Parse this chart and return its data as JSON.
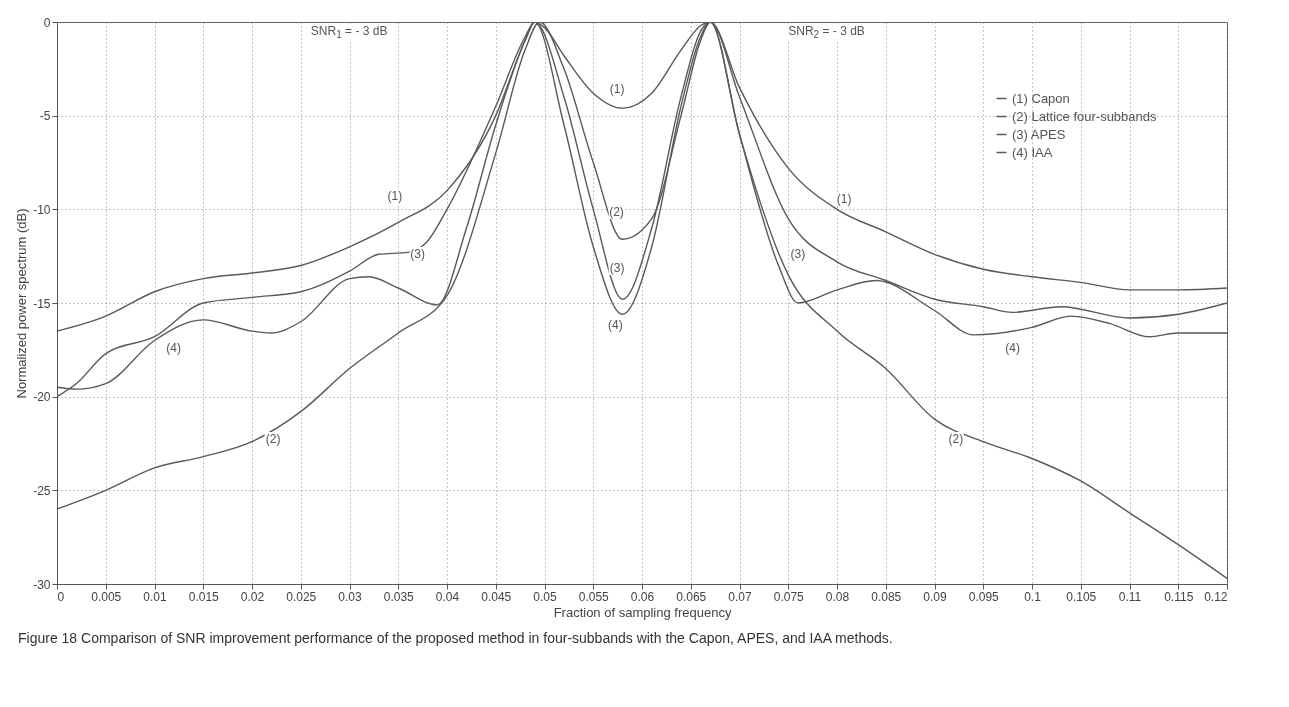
{
  "chart_data": {
    "type": "line",
    "xlabel": "Fraction of sampling frequency",
    "ylabel": "Normalized power spectrum (dB)",
    "xlim": [
      0,
      0.12
    ],
    "ylim": [
      -30,
      0
    ],
    "xticks": [
      0,
      0.005,
      0.01,
      0.015,
      0.02,
      0.025,
      0.03,
      0.035,
      0.04,
      0.045,
      0.05,
      0.055,
      0.06,
      0.065,
      0.07,
      0.075,
      0.08,
      0.085,
      0.09,
      0.095,
      0.1,
      0.105,
      0.11,
      0.115,
      0.12
    ],
    "yticks": [
      -30,
      -25,
      -20,
      -15,
      -10,
      -5,
      0
    ],
    "grid": true,
    "legend": "top right",
    "line_style": "solid",
    "series": [
      {
        "name": "(1) Capon",
        "color": "#595959",
        "x": [
          0,
          0.005,
          0.01,
          0.015,
          0.02,
          0.025,
          0.03,
          0.035,
          0.04,
          0.045,
          0.048,
          0.049,
          0.05,
          0.052,
          0.055,
          0.058,
          0.061,
          0.064,
          0.066,
          0.067,
          0.07,
          0.075,
          0.08,
          0.085,
          0.09,
          0.095,
          0.1,
          0.105,
          0.11,
          0.115,
          0.12
        ],
        "values": [
          -16.5,
          -15.7,
          -14.4,
          -13.7,
          -13.4,
          -13.0,
          -12.0,
          -10.7,
          -9.0,
          -5.0,
          -1.0,
          0,
          -0.3,
          -1.8,
          -3.8,
          -4.6,
          -3.8,
          -1.5,
          -0.2,
          0,
          -3.5,
          -7.8,
          -10.0,
          -11.2,
          -12.4,
          -13.2,
          -13.6,
          -13.9,
          -14.3,
          -14.3,
          -14.2
        ]
      },
      {
        "name": "(2) Lattice four-subbands",
        "color": "#595959",
        "x": [
          0,
          0.005,
          0.01,
          0.015,
          0.02,
          0.025,
          0.03,
          0.035,
          0.04,
          0.045,
          0.048,
          0.0495,
          0.052,
          0.055,
          0.058,
          0.061,
          0.064,
          0.066,
          0.067,
          0.07,
          0.075,
          0.08,
          0.085,
          0.09,
          0.095,
          0.1,
          0.105,
          0.11,
          0.115,
          0.12
        ],
        "values": [
          -26,
          -25,
          -23.8,
          -23.2,
          -22.4,
          -20.8,
          -18.5,
          -16.6,
          -14.6,
          -7,
          -1.5,
          0,
          -2.5,
          -7.5,
          -11.6,
          -10.5,
          -5,
          -1,
          0,
          -6,
          -13.5,
          -16.5,
          -18.5,
          -21.2,
          -22.4,
          -23.3,
          -24.5,
          -26.2,
          -27.9,
          -29.7
        ]
      },
      {
        "name": "(3) APES",
        "color": "#595959",
        "x": [
          0,
          0.002,
          0.005,
          0.01,
          0.015,
          0.02,
          0.025,
          0.03,
          0.033,
          0.036,
          0.038,
          0.04,
          0.045,
          0.048,
          0.049,
          0.052,
          0.055,
          0.058,
          0.061,
          0.064,
          0.066,
          0.067,
          0.07,
          0.075,
          0.08,
          0.085,
          0.09,
          0.095,
          0.098,
          0.103,
          0.11,
          0.115,
          0.12
        ],
        "values": [
          -20,
          -19.3,
          -17.7,
          -16.8,
          -15.0,
          -14.7,
          -14.4,
          -13.3,
          -12.4,
          -12.3,
          -11.7,
          -10,
          -4.5,
          -0.8,
          0,
          -4,
          -10,
          -14.8,
          -11,
          -4,
          -0.5,
          0,
          -4,
          -10.5,
          -12.8,
          -13.8,
          -14.8,
          -15.2,
          -15.5,
          -15.2,
          -15.8,
          -15.6,
          -15.0
        ]
      },
      {
        "name": "(4) IAA",
        "color": "#595959",
        "x": [
          0,
          0.002,
          0.005,
          0.01,
          0.015,
          0.02,
          0.022,
          0.025,
          0.03,
          0.032,
          0.035,
          0.039,
          0.042,
          0.045,
          0.048,
          0.049,
          0.052,
          0.055,
          0.058,
          0.061,
          0.064,
          0.066,
          0.067,
          0.07,
          0.074,
          0.076,
          0.08,
          0.084,
          0.09,
          0.094,
          0.1,
          0.104,
          0.108,
          0.112,
          0.115,
          0.12
        ],
        "values": [
          -19.5,
          -19.6,
          -19.3,
          -17.0,
          -15.9,
          -16.5,
          -16.6,
          -16.0,
          -13.7,
          -13.6,
          -14.2,
          -15.1,
          -11,
          -5.5,
          -1,
          0,
          -5.5,
          -12,
          -15.6,
          -12,
          -4.5,
          -0.8,
          0,
          -6,
          -13,
          -15,
          -14.3,
          -13.8,
          -15.4,
          -16.7,
          -16.3,
          -15.7,
          -16.1,
          -16.8,
          -16.6,
          -16.6
        ]
      }
    ],
    "annotations": [
      "SNR$_{1}$ = - 3 dB",
      "SNR$_{2}$ = - 3 dB",
      "(1)",
      "(3)",
      "(4)",
      "(2)",
      "(1)",
      "(2)",
      "(3)",
      "(4)",
      "(1)",
      "(3)",
      "(4)",
      "(2)",
      "Figure 18 Comparison of SNR improvement performance of the proposed method in four-subbands with the Capon, APES, and IAA methods."
    ]
  }
}
